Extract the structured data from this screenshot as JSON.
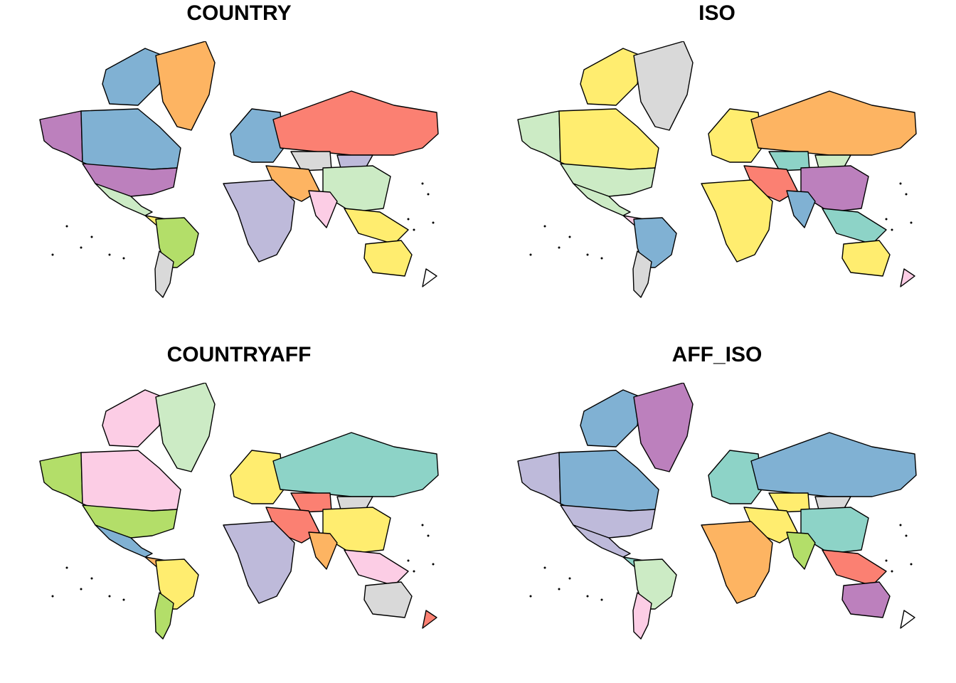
{
  "palette": {
    "teal": "#8DD3C7",
    "yellow": "#FFED6F",
    "lavender": "#BEBADA",
    "salmon": "#FB8072",
    "blue": "#80B1D3",
    "orange": "#FDB462",
    "green": "#B3DE69",
    "pink": "#FCCDE5",
    "grey": "#D9D9D9",
    "purple": "#BC80BD",
    "mint": "#CCEBC5",
    "lightyellow": "#FFFFB3",
    "red": "#FB8072",
    "border": "#000000"
  },
  "panels": [
    {
      "title": "COUNTRY",
      "fills": {
        "alaska": "#BC80BD",
        "canada": "#80B1D3",
        "arctic": "#80B1D3",
        "greenland": "#FDB462",
        "usa": "#BC80BD",
        "mexico": "#CCEBC5",
        "centralam": "#FFED6F",
        "southam": "#B3DE69",
        "argentina": "#D9D9D9",
        "europe": "#80B1D3",
        "russia": "#FB8072",
        "china": "#CCEBC5",
        "mideast": "#FDB462",
        "africa": "#BEBADA",
        "india": "#FCCDE5",
        "seasia": "#FFED6F",
        "australia": "#FFED6F",
        "nz": "#FFFFFF",
        "mongolia": "#BEBADA",
        "kazakh": "#D9D9D9"
      }
    },
    {
      "title": "ISO",
      "fills": {
        "alaska": "#CCEBC5",
        "canada": "#FFED6F",
        "arctic": "#FFED6F",
        "greenland": "#D9D9D9",
        "usa": "#CCEBC5",
        "mexico": "#CCEBC5",
        "centralam": "#FCCDE5",
        "southam": "#80B1D3",
        "argentina": "#D9D9D9",
        "europe": "#FFED6F",
        "russia": "#FDB462",
        "china": "#BC80BD",
        "mideast": "#FB8072",
        "africa": "#FFED6F",
        "india": "#80B1D3",
        "seasia": "#8DD3C7",
        "australia": "#FFED6F",
        "nz": "#FCCDE5",
        "mongolia": "#CCEBC5",
        "kazakh": "#8DD3C7"
      }
    },
    {
      "title": "COUNTRYAFF",
      "fills": {
        "alaska": "#B3DE69",
        "canada": "#FCCDE5",
        "arctic": "#FCCDE5",
        "greenland": "#CCEBC5",
        "usa": "#B3DE69",
        "mexico": "#80B1D3",
        "centralam": "#FDB462",
        "southam": "#FFED6F",
        "argentina": "#B3DE69",
        "europe": "#FFED6F",
        "russia": "#8DD3C7",
        "china": "#FFED6F",
        "mideast": "#FB8072",
        "africa": "#BEBADA",
        "india": "#FDB462",
        "seasia": "#FCCDE5",
        "australia": "#D9D9D9",
        "nz": "#FB8072",
        "mongolia": "#D9D9D9",
        "kazakh": "#FB8072"
      }
    },
    {
      "title": "AFF_ISO",
      "fills": {
        "alaska": "#BEBADA",
        "canada": "#80B1D3",
        "arctic": "#80B1D3",
        "greenland": "#BC80BD",
        "usa": "#BEBADA",
        "mexico": "#BEBADA",
        "centralam": "#8DD3C7",
        "southam": "#CCEBC5",
        "argentina": "#FCCDE5",
        "europe": "#8DD3C7",
        "russia": "#80B1D3",
        "china": "#8DD3C7",
        "mideast": "#FFED6F",
        "africa": "#FDB462",
        "india": "#B3DE69",
        "seasia": "#FB8072",
        "australia": "#BC80BD",
        "nz": "#FFFFFF",
        "mongolia": "#D9D9D9",
        "kazakh": "#FFED6F"
      }
    }
  ]
}
